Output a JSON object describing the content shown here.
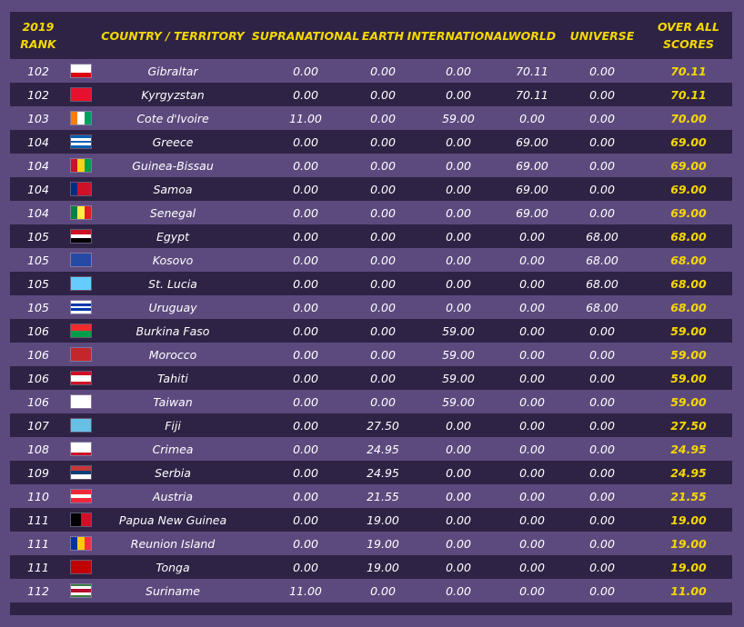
{
  "header": {
    "rank_line1": "2019",
    "rank_line2": "RANK",
    "country": "COUNTRY / TERRITORY",
    "supranational": "SUPRANATIONAL",
    "earth": "EARTH",
    "international": "INTERNATIONAL",
    "world": "WORLD",
    "universe": "UNIVERSE",
    "overall_line1": "OVER ALL",
    "overall_line2": "SCORES"
  },
  "rows": [
    {
      "rank": "102",
      "country": "Gibraltar",
      "supranational": "0.00",
      "earth": "0.00",
      "international": "0.00",
      "world": "70.11",
      "universe": "0.00",
      "total": "70.11",
      "flag": {
        "dir": "v",
        "colors": [
          "#ffffff",
          "#ffffff",
          "#da000c"
        ]
      }
    },
    {
      "rank": "102",
      "country": "Kyrgyzstan",
      "supranational": "0.00",
      "earth": "0.00",
      "international": "0.00",
      "world": "70.11",
      "universe": "0.00",
      "total": "70.11",
      "flag": {
        "dir": "v",
        "colors": [
          "#e8112d"
        ]
      }
    },
    {
      "rank": "103",
      "country": "Cote d'Ivoire",
      "supranational": "11.00",
      "earth": "0.00",
      "international": "59.00",
      "world": "0.00",
      "universe": "0.00",
      "total": "70.00",
      "flag": {
        "dir": "h",
        "colors": [
          "#f77f00",
          "#ffffff",
          "#009e60"
        ]
      }
    },
    {
      "rank": "104",
      "country": "Greece",
      "supranational": "0.00",
      "earth": "0.00",
      "international": "0.00",
      "world": "69.00",
      "universe": "0.00",
      "total": "69.00",
      "flag": {
        "dir": "v",
        "colors": [
          "#0d5eaf",
          "#ffffff",
          "#0d5eaf",
          "#ffffff",
          "#0d5eaf"
        ]
      }
    },
    {
      "rank": "104",
      "country": "Guinea-Bissau",
      "supranational": "0.00",
      "earth": "0.00",
      "international": "0.00",
      "world": "69.00",
      "universe": "0.00",
      "total": "69.00",
      "flag": {
        "dir": "h",
        "colors": [
          "#ce1126",
          "#fcd116",
          "#009e49"
        ]
      }
    },
    {
      "rank": "104",
      "country": "Samoa",
      "supranational": "0.00",
      "earth": "0.00",
      "international": "0.00",
      "world": "69.00",
      "universe": "0.00",
      "total": "69.00",
      "flag": {
        "dir": "h",
        "colors": [
          "#002b7f",
          "#ce1126",
          "#ce1126"
        ]
      }
    },
    {
      "rank": "104",
      "country": "Senegal",
      "supranational": "0.00",
      "earth": "0.00",
      "international": "0.00",
      "world": "69.00",
      "universe": "0.00",
      "total": "69.00",
      "flag": {
        "dir": "h",
        "colors": [
          "#00853f",
          "#fdef42",
          "#e31b23"
        ]
      }
    },
    {
      "rank": "105",
      "country": "Egypt",
      "supranational": "0.00",
      "earth": "0.00",
      "international": "0.00",
      "world": "0.00",
      "universe": "68.00",
      "total": "68.00",
      "flag": {
        "dir": "v",
        "colors": [
          "#ce1126",
          "#ffffff",
          "#000000"
        ]
      }
    },
    {
      "rank": "105",
      "country": "Kosovo",
      "supranational": "0.00",
      "earth": "0.00",
      "international": "0.00",
      "world": "0.00",
      "universe": "68.00",
      "total": "68.00",
      "flag": {
        "dir": "v",
        "colors": [
          "#244aa5"
        ]
      }
    },
    {
      "rank": "105",
      "country": "St. Lucia",
      "supranational": "0.00",
      "earth": "0.00",
      "international": "0.00",
      "world": "0.00",
      "universe": "68.00",
      "total": "68.00",
      "flag": {
        "dir": "v",
        "colors": [
          "#66ccff"
        ]
      }
    },
    {
      "rank": "105",
      "country": "Uruguay",
      "supranational": "0.00",
      "earth": "0.00",
      "international": "0.00",
      "world": "0.00",
      "universe": "68.00",
      "total": "68.00",
      "flag": {
        "dir": "v",
        "colors": [
          "#ffffff",
          "#0038a8",
          "#ffffff",
          "#0038a8",
          "#ffffff"
        ]
      }
    },
    {
      "rank": "106",
      "country": "Burkina Faso",
      "supranational": "0.00",
      "earth": "0.00",
      "international": "59.00",
      "world": "0.00",
      "universe": "0.00",
      "total": "59.00",
      "flag": {
        "dir": "v",
        "colors": [
          "#ef2b2d",
          "#009e49"
        ]
      }
    },
    {
      "rank": "106",
      "country": "Morocco",
      "supranational": "0.00",
      "earth": "0.00",
      "international": "59.00",
      "world": "0.00",
      "universe": "0.00",
      "total": "59.00",
      "flag": {
        "dir": "v",
        "colors": [
          "#c1272d"
        ]
      }
    },
    {
      "rank": "106",
      "country": "Tahiti",
      "supranational": "0.00",
      "earth": "0.00",
      "international": "59.00",
      "world": "0.00",
      "universe": "0.00",
      "total": "59.00",
      "flag": {
        "dir": "v",
        "colors": [
          "#ce1126",
          "#ffffff",
          "#ffffff",
          "#ce1126"
        ]
      }
    },
    {
      "rank": "106",
      "country": "Taiwan",
      "supranational": "0.00",
      "earth": "0.00",
      "international": "59.00",
      "world": "0.00",
      "universe": "0.00",
      "total": "59.00",
      "flag": {
        "dir": "v",
        "colors": [
          "#ffffff"
        ]
      }
    },
    {
      "rank": "107",
      "country": "Fiji",
      "supranational": "0.00",
      "earth": "27.50",
      "international": "0.00",
      "world": "0.00",
      "universe": "0.00",
      "total": "27.50",
      "flag": {
        "dir": "v",
        "colors": [
          "#68bfe5"
        ]
      }
    },
    {
      "rank": "108",
      "country": "Crimea",
      "supranational": "0.00",
      "earth": "24.95",
      "international": "0.00",
      "world": "0.00",
      "universe": "0.00",
      "total": "24.95",
      "flag": {
        "dir": "v",
        "colors": [
          "#ffffff",
          "#ffffff",
          "#ffffff",
          "#ffffff",
          "#ce1126"
        ]
      }
    },
    {
      "rank": "109",
      "country": "Serbia",
      "supranational": "0.00",
      "earth": "24.95",
      "international": "0.00",
      "world": "0.00",
      "universe": "0.00",
      "total": "24.95",
      "flag": {
        "dir": "v",
        "colors": [
          "#c6363c",
          "#0c4076",
          "#ffffff"
        ]
      }
    },
    {
      "rank": "110",
      "country": "Austria",
      "supranational": "0.00",
      "earth": "21.55",
      "international": "0.00",
      "world": "0.00",
      "universe": "0.00",
      "total": "21.55",
      "flag": {
        "dir": "v",
        "colors": [
          "#ed2939",
          "#ffffff",
          "#ed2939"
        ]
      }
    },
    {
      "rank": "111",
      "country": "Papua New Guinea",
      "supranational": "0.00",
      "earth": "19.00",
      "international": "0.00",
      "world": "0.00",
      "universe": "0.00",
      "total": "19.00",
      "flag": {
        "dir": "h",
        "colors": [
          "#000000",
          "#ce1126"
        ]
      }
    },
    {
      "rank": "111",
      "country": "Reunion Island",
      "supranational": "0.00",
      "earth": "19.00",
      "international": "0.00",
      "world": "0.00",
      "universe": "0.00",
      "total": "19.00",
      "flag": {
        "dir": "h",
        "colors": [
          "#0033a0",
          "#ffcc00",
          "#ef3340"
        ]
      }
    },
    {
      "rank": "111",
      "country": "Tonga",
      "supranational": "0.00",
      "earth": "19.00",
      "international": "0.00",
      "world": "0.00",
      "universe": "0.00",
      "total": "19.00",
      "flag": {
        "dir": "v",
        "colors": [
          "#c10000"
        ]
      }
    },
    {
      "rank": "112",
      "country": "Suriname",
      "supranational": "11.00",
      "earth": "0.00",
      "international": "0.00",
      "world": "0.00",
      "universe": "0.00",
      "total": "11.00",
      "flag": {
        "dir": "v",
        "colors": [
          "#377e3f",
          "#ffffff",
          "#b40a2d",
          "#b40a2d",
          "#ffffff",
          "#377e3f"
        ]
      }
    }
  ]
}
